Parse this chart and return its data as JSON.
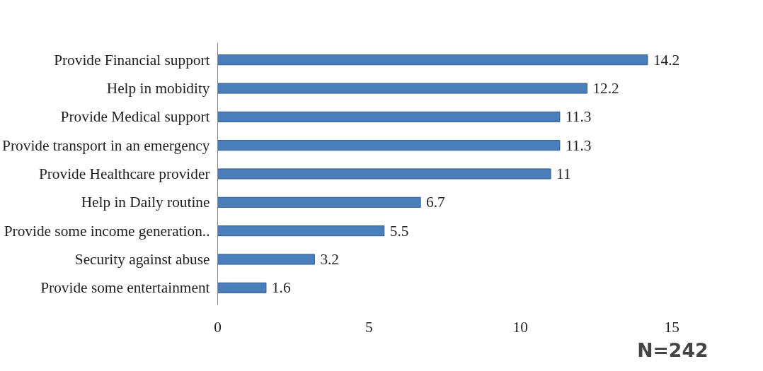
{
  "chart_data": {
    "type": "bar",
    "orientation": "horizontal",
    "categories": [
      "Provide Financial support",
      "Help in mobidity",
      "Provide Medical support",
      "Provide transport in an emergency",
      "Provide Healthcare provider",
      "Help in Daily routine",
      "Provide some income generation..",
      "Security against abuse",
      "Provide some entertainment"
    ],
    "values": [
      14.2,
      12.2,
      11.3,
      11.3,
      11,
      6.7,
      5.5,
      3.2,
      1.6
    ],
    "color": "#4a7ebb",
    "xlim": [
      0,
      15
    ],
    "xticks": [
      0,
      5,
      10,
      15
    ],
    "grid": false,
    "data_labels": true,
    "annotations": [
      "N=242"
    ]
  }
}
